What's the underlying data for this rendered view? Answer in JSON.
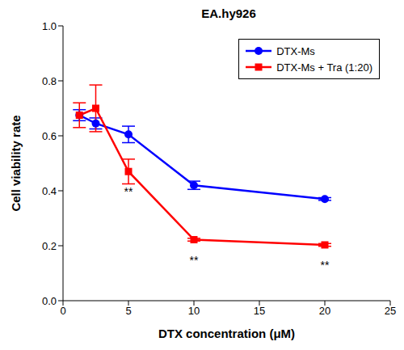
{
  "chart_data": {
    "type": "line",
    "title": "EA.hy926",
    "x_label": "DTX concentration (μM)",
    "y_label": "Cell viability rate",
    "x": [
      1.25,
      2.5,
      5,
      10,
      20
    ],
    "series": [
      {
        "name": "DTX-Ms",
        "color": "#0000ff",
        "marker": "circle",
        "values": [
          0.675,
          0.645,
          0.605,
          0.42,
          0.37
        ],
        "errors": [
          0.02,
          0.02,
          0.03,
          0.015,
          0.005
        ]
      },
      {
        "name": "DTX-Ms + Tra (1:20)",
        "color": "#ff0000",
        "marker": "square",
        "values": [
          0.675,
          0.7,
          0.47,
          0.222,
          0.203
        ],
        "errors": [
          0.045,
          0.085,
          0.045,
          0.005,
          0.005
        ],
        "annotations": [
          {
            "x": 5,
            "text": "**"
          },
          {
            "x": 10,
            "text": "**"
          },
          {
            "x": 20,
            "text": "**"
          }
        ]
      }
    ],
    "xlim": [
      0,
      25
    ],
    "xticks": [
      0,
      5,
      10,
      15,
      20,
      25
    ],
    "ylim": [
      0,
      1
    ],
    "yticks": [
      {
        "value": 0,
        "label": "0.0"
      },
      0.2,
      0.4,
      0.6,
      0.8,
      {
        "value": 1,
        "label": "1.0"
      }
    ],
    "grid": false,
    "legend": "upper right"
  }
}
